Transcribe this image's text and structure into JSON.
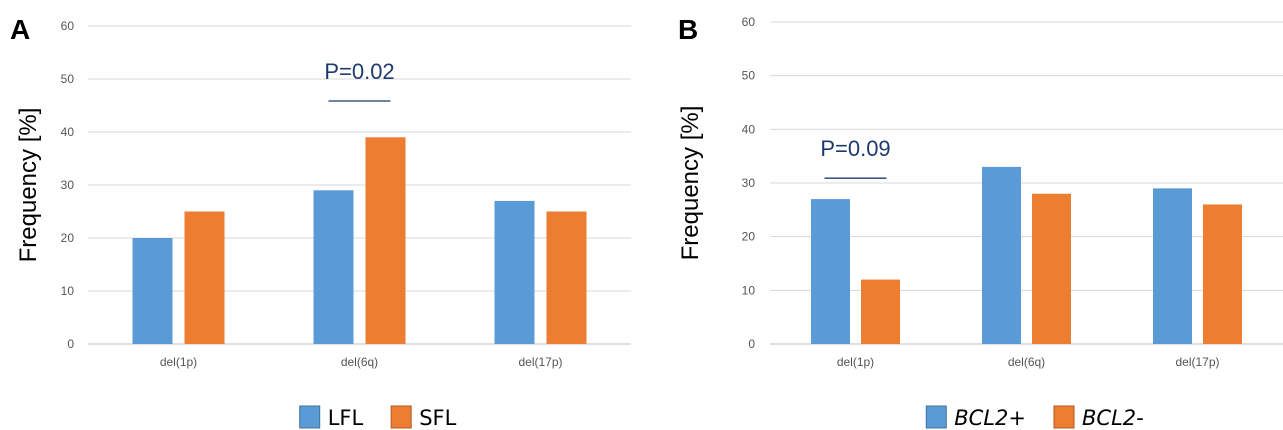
{
  "chart_data": [
    {
      "type": "bar",
      "panel_label": "A",
      "ylabel": "Frequency [%]",
      "xlabel": "",
      "ylim": [
        0,
        60
      ],
      "yticks": [
        0,
        10,
        20,
        30,
        40,
        50,
        60
      ],
      "grid": true,
      "legend_position": "bottom",
      "legend_italic": false,
      "categories": [
        "del(1p)",
        "del(6q)",
        "del(17p)"
      ],
      "series": [
        {
          "name": "LFL",
          "color": "#5b9bd5",
          "values": [
            20,
            29,
            27
          ]
        },
        {
          "name": "SFL",
          "color": "#ed7d31",
          "values": [
            25,
            39,
            25
          ]
        }
      ],
      "annotations": [
        {
          "text": "P=0.02",
          "category_index": 1,
          "y": 50
        }
      ]
    },
    {
      "type": "bar",
      "panel_label": "B",
      "ylabel": "Frequency [%]",
      "xlabel": "",
      "ylim": [
        0,
        60
      ],
      "yticks": [
        0,
        10,
        20,
        30,
        40,
        50,
        60
      ],
      "grid": true,
      "legend_position": "bottom",
      "legend_italic": true,
      "categories": [
        "del(1p)",
        "del(6q)",
        "del(17p)"
      ],
      "series": [
        {
          "name": "BCL2+",
          "color": "#5b9bd5",
          "values": [
            27,
            33,
            29
          ]
        },
        {
          "name": "BCL2-",
          "color": "#ed7d31",
          "values": [
            12,
            28,
            26
          ]
        }
      ],
      "annotations": [
        {
          "text": "P=0.09",
          "category_index": 0,
          "y": 35
        }
      ]
    }
  ]
}
